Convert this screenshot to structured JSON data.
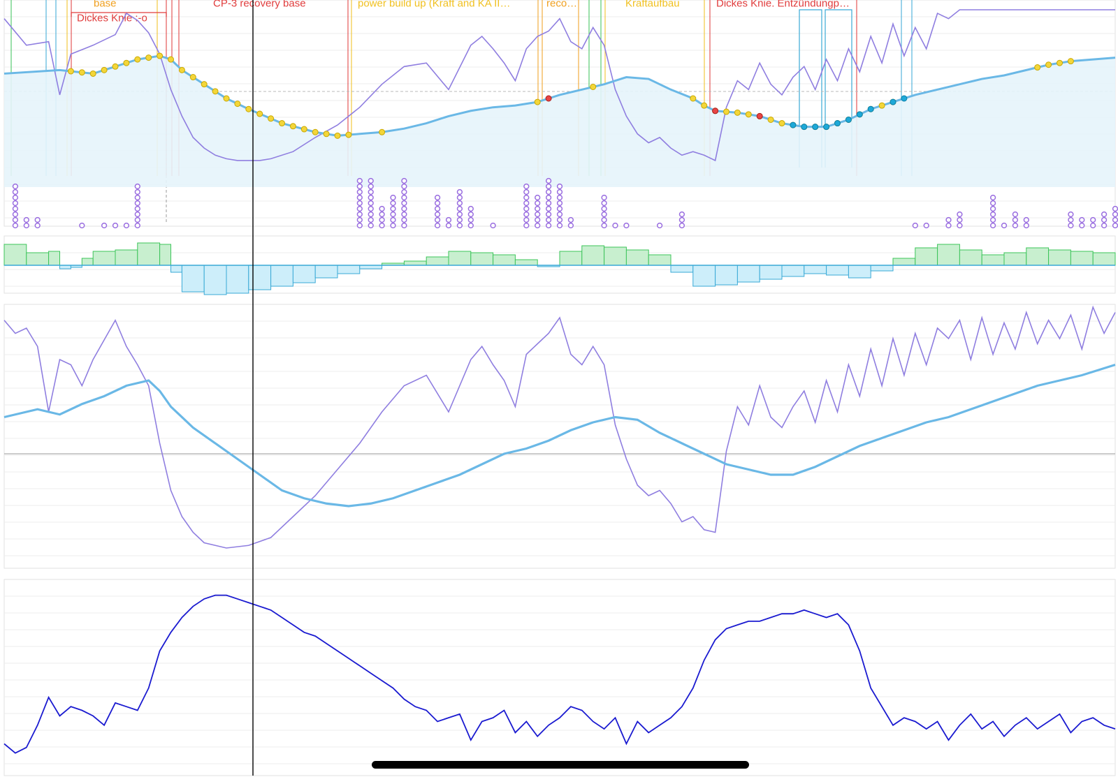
{
  "colors": {
    "raw_line": "#8f7ee0",
    "smooth_line": "#6ab8e6",
    "smooth_fill": "#e6f4fb",
    "bar_pos_fill": "#c8efcf",
    "bar_pos_line": "#3cc45a",
    "bar_neg_fill": "#cdeefa",
    "bar_neg_line": "#39a9d6",
    "dot_purple": "#9a6ee0",
    "dot_yellow": "#f3d63a",
    "dot_yellow_edge": "#c9a800",
    "dot_cyan": "#1ea9d8",
    "dot_red": "#e84545",
    "bottom_line": "#1a1ad0",
    "cursor": "#000000",
    "grid": "#ececec"
  },
  "annotations": [
    {
      "text": "base",
      "color": "#f0a020"
    },
    {
      "text": "Dickes Knie :-o",
      "color": "#e03c3c"
    },
    {
      "text": "CP-3 recovery base",
      "color": "#e03c3c"
    },
    {
      "text": "power build up (Kraft and KA II…",
      "color": "#f0c020"
    },
    {
      "text": "reco…",
      "color": "#f0a020"
    },
    {
      "text": "Kraftaufbau",
      "color": "#f0c020"
    },
    {
      "text": "Dickes Knie. Entzündungp…",
      "color": "#e03c3c"
    }
  ],
  "chart_data": [
    {
      "type": "line",
      "panel": "fitness",
      "title": "",
      "xlabel": "",
      "ylabel": "",
      "x_range": [
        0,
        100
      ],
      "y_range": [
        0,
        100
      ],
      "series": [
        {
          "role": "raw",
          "x": [
            0,
            2,
            4,
            5,
            6,
            8,
            10,
            11,
            12,
            13,
            14,
            15,
            16,
            17,
            18,
            19,
            20,
            21,
            22,
            23,
            24,
            26,
            28,
            30,
            32,
            34,
            36,
            38,
            40,
            42,
            43,
            44,
            45,
            46,
            47,
            48,
            49,
            50,
            51,
            52,
            53,
            54,
            55,
            56,
            57,
            58,
            59,
            60,
            61,
            62,
            63,
            64,
            65,
            66,
            67,
            68,
            69,
            70,
            71,
            72,
            73,
            74,
            75,
            76,
            77,
            78,
            79,
            80,
            81,
            82,
            83,
            84,
            85,
            86,
            87,
            88,
            89,
            90,
            91,
            92,
            93,
            94,
            95,
            96,
            97,
            98,
            99,
            100
          ],
          "y": [
            95,
            80,
            82,
            52,
            75,
            80,
            86,
            98,
            94,
            87,
            75,
            55,
            40,
            28,
            22,
            18,
            16,
            15,
            15,
            15,
            16,
            20,
            28,
            35,
            45,
            58,
            68,
            70,
            55,
            80,
            85,
            78,
            70,
            60,
            78,
            85,
            88,
            95,
            82,
            78,
            90,
            80,
            55,
            40,
            30,
            25,
            28,
            22,
            18,
            20,
            18,
            15,
            45,
            60,
            55,
            70,
            58,
            52,
            62,
            68,
            55,
            72,
            60,
            78,
            65,
            85,
            70,
            92,
            74,
            90,
            78,
            98,
            95,
            100,
            100,
            100,
            100,
            100,
            100,
            100,
            100,
            100,
            100,
            100,
            100,
            100,
            100,
            100
          ]
        },
        {
          "role": "smooth",
          "x": [
            0,
            5,
            8,
            10,
            12,
            14,
            15,
            16,
            18,
            20,
            22,
            25,
            28,
            30,
            32,
            34,
            36,
            38,
            40,
            42,
            44,
            46,
            48,
            50,
            52,
            54,
            56,
            58,
            60,
            62,
            63,
            64,
            66,
            68,
            70,
            72,
            74,
            76,
            78,
            80,
            82,
            84,
            86,
            88,
            90,
            92,
            94,
            96,
            98,
            100
          ],
          "y": [
            64,
            66,
            64,
            68,
            72,
            74,
            72,
            66,
            58,
            50,
            44,
            36,
            31,
            29,
            30,
            31,
            33,
            36,
            40,
            43,
            45,
            46,
            48,
            52,
            55,
            58,
            62,
            61,
            55,
            50,
            46,
            43,
            42,
            40,
            36,
            34,
            34,
            38,
            44,
            48,
            52,
            55,
            58,
            61,
            63,
            66,
            69,
            71,
            72,
            73
          ]
        }
      ],
      "markers": {
        "yellow_x": [
          6,
          7,
          8,
          9,
          10,
          11,
          12,
          13,
          14,
          15,
          16,
          17,
          18,
          19,
          20,
          21,
          22,
          23,
          24,
          25,
          26,
          27,
          28,
          29,
          30,
          31,
          34,
          48,
          53,
          62,
          63,
          64,
          65,
          66,
          67,
          68,
          69,
          70,
          71,
          72,
          73,
          74,
          75,
          76,
          77,
          78,
          79,
          80,
          93,
          94,
          95,
          96
        ],
        "cyan_x": [
          71,
          72,
          73,
          74,
          75,
          76,
          77,
          78,
          80,
          81
        ],
        "red_x": [
          49,
          64,
          68
        ]
      },
      "event_columns": {
        "x": [
          1,
          2,
          3,
          7,
          9,
          10,
          11,
          12,
          32,
          33,
          34,
          35,
          36,
          39,
          40,
          41,
          42,
          44,
          47,
          48,
          49,
          50,
          51,
          54,
          55,
          56,
          59,
          61,
          82,
          83,
          85,
          86,
          89,
          90,
          91,
          92,
          96,
          97,
          98,
          99,
          100
        ],
        "counts": [
          8,
          2,
          2,
          1,
          1,
          1,
          1,
          8,
          9,
          9,
          4,
          6,
          9,
          6,
          2,
          7,
          4,
          1,
          8,
          6,
          9,
          8,
          2,
          6,
          1,
          1,
          1,
          3,
          1,
          1,
          2,
          3,
          6,
          1,
          3,
          2,
          3,
          2,
          2,
          3,
          4
        ]
      }
    },
    {
      "type": "bar",
      "panel": "form",
      "title": "",
      "x_range": [
        0,
        100
      ],
      "y_range": [
        -45,
        40
      ],
      "x": [
        0,
        2,
        4,
        5,
        6,
        7,
        8,
        10,
        12,
        14,
        15,
        16,
        18,
        20,
        22,
        24,
        26,
        28,
        30,
        32,
        34,
        36,
        38,
        40,
        42,
        44,
        46,
        48,
        50,
        52,
        54,
        56,
        58,
        60,
        62,
        64,
        66,
        68,
        70,
        72,
        74,
        76,
        78,
        80,
        82,
        84,
        86,
        88,
        90,
        92,
        94,
        96,
        98
      ],
      "values": [
        30,
        18,
        20,
        -5,
        -3,
        10,
        20,
        22,
        32,
        30,
        -10,
        -38,
        -42,
        -40,
        -35,
        -30,
        -25,
        -18,
        -12,
        -5,
        3,
        6,
        12,
        20,
        18,
        15,
        8,
        -2,
        20,
        28,
        26,
        22,
        15,
        -10,
        -30,
        -28,
        -24,
        -20,
        -16,
        -12,
        -14,
        -18,
        -8,
        10,
        25,
        30,
        22,
        15,
        18,
        25,
        22,
        20,
        18
      ]
    },
    {
      "type": "line",
      "panel": "fitness-detail",
      "title": "",
      "x_range": [
        0,
        100
      ],
      "y_range": [
        0,
        100
      ],
      "series": [
        {
          "role": "raw",
          "x": [
            0,
            1,
            2,
            3,
            4,
            5,
            6,
            7,
            8,
            10,
            11,
            12,
            13,
            14,
            15,
            16,
            17,
            18,
            20,
            22,
            24,
            26,
            28,
            30,
            32,
            34,
            36,
            38,
            40,
            42,
            43,
            44,
            45,
            46,
            47,
            48,
            49,
            50,
            51,
            52,
            53,
            54,
            55,
            56,
            57,
            58,
            59,
            60,
            61,
            62,
            63,
            64,
            65,
            66,
            67,
            68,
            69,
            70,
            71,
            72,
            73,
            74,
            75,
            76,
            77,
            78,
            79,
            80,
            81,
            82,
            83,
            84,
            85,
            86,
            87,
            88,
            89,
            90,
            91,
            92,
            93,
            94,
            95,
            96,
            97,
            98,
            99,
            100
          ],
          "y": [
            95,
            90,
            92,
            85,
            60,
            80,
            78,
            70,
            80,
            95,
            85,
            78,
            70,
            48,
            30,
            20,
            14,
            10,
            8,
            9,
            12,
            20,
            28,
            38,
            48,
            60,
            70,
            74,
            60,
            80,
            85,
            78,
            72,
            62,
            82,
            86,
            90,
            96,
            82,
            78,
            85,
            78,
            55,
            42,
            32,
            28,
            30,
            25,
            18,
            20,
            15,
            14,
            45,
            62,
            55,
            70,
            58,
            54,
            62,
            68,
            56,
            72,
            60,
            78,
            66,
            84,
            70,
            88,
            74,
            90,
            78,
            92,
            88,
            95,
            80,
            96,
            82,
            94,
            84,
            98,
            86,
            95,
            88,
            97,
            84,
            100,
            90,
            98
          ]
        },
        {
          "role": "smooth",
          "x": [
            0,
            3,
            5,
            7,
            9,
            11,
            13,
            14,
            15,
            17,
            19,
            21,
            23,
            25,
            27,
            29,
            31,
            33,
            35,
            37,
            39,
            41,
            43,
            45,
            47,
            49,
            51,
            53,
            55,
            57,
            59,
            61,
            63,
            65,
            67,
            69,
            71,
            73,
            75,
            77,
            79,
            81,
            83,
            85,
            87,
            89,
            91,
            93,
            95,
            97,
            100
          ],
          "y": [
            58,
            61,
            59,
            63,
            66,
            70,
            72,
            68,
            62,
            54,
            48,
            42,
            36,
            30,
            27,
            25,
            24,
            25,
            27,
            30,
            33,
            36,
            40,
            44,
            46,
            49,
            53,
            56,
            58,
            57,
            52,
            48,
            44,
            40,
            38,
            36,
            36,
            39,
            43,
            47,
            50,
            53,
            56,
            58,
            61,
            64,
            67,
            70,
            72,
            74,
            78
          ]
        }
      ]
    },
    {
      "type": "line",
      "panel": "ramp",
      "title": "",
      "x_range": [
        0,
        100
      ],
      "y_range": [
        0,
        100
      ],
      "series": [
        {
          "role": "ramp",
          "x": [
            0,
            1,
            2,
            3,
            4,
            5,
            6,
            7,
            8,
            9,
            10,
            11,
            12,
            13,
            14,
            15,
            16,
            17,
            18,
            19,
            20,
            21,
            22,
            23,
            24,
            25,
            26,
            27,
            28,
            29,
            30,
            31,
            32,
            33,
            34,
            35,
            36,
            37,
            38,
            39,
            40,
            41,
            42,
            43,
            44,
            45,
            46,
            47,
            48,
            49,
            50,
            51,
            52,
            53,
            54,
            55,
            56,
            57,
            58,
            59,
            60,
            61,
            62,
            63,
            64,
            65,
            66,
            67,
            68,
            69,
            70,
            71,
            72,
            73,
            74,
            75,
            76,
            77,
            78,
            79,
            80,
            81,
            82,
            83,
            84,
            85,
            86,
            87,
            88,
            89,
            90,
            91,
            92,
            93,
            94,
            95,
            96,
            97,
            98,
            99,
            100
          ],
          "y": [
            10,
            5,
            8,
            20,
            35,
            25,
            30,
            28,
            25,
            20,
            32,
            30,
            28,
            40,
            60,
            70,
            78,
            84,
            88,
            90,
            90,
            88,
            86,
            84,
            82,
            78,
            74,
            70,
            68,
            64,
            60,
            56,
            52,
            48,
            44,
            40,
            34,
            30,
            28,
            22,
            24,
            26,
            12,
            22,
            24,
            28,
            16,
            22,
            14,
            20,
            24,
            30,
            28,
            22,
            18,
            24,
            10,
            22,
            16,
            20,
            24,
            30,
            40,
            55,
            66,
            72,
            74,
            76,
            76,
            78,
            80,
            80,
            82,
            80,
            78,
            80,
            74,
            60,
            40,
            30,
            20,
            24,
            22,
            18,
            22,
            12,
            20,
            26,
            18,
            22,
            14,
            20,
            24,
            18,
            22,
            26,
            16,
            22,
            24,
            20,
            18
          ]
        }
      ]
    }
  ]
}
